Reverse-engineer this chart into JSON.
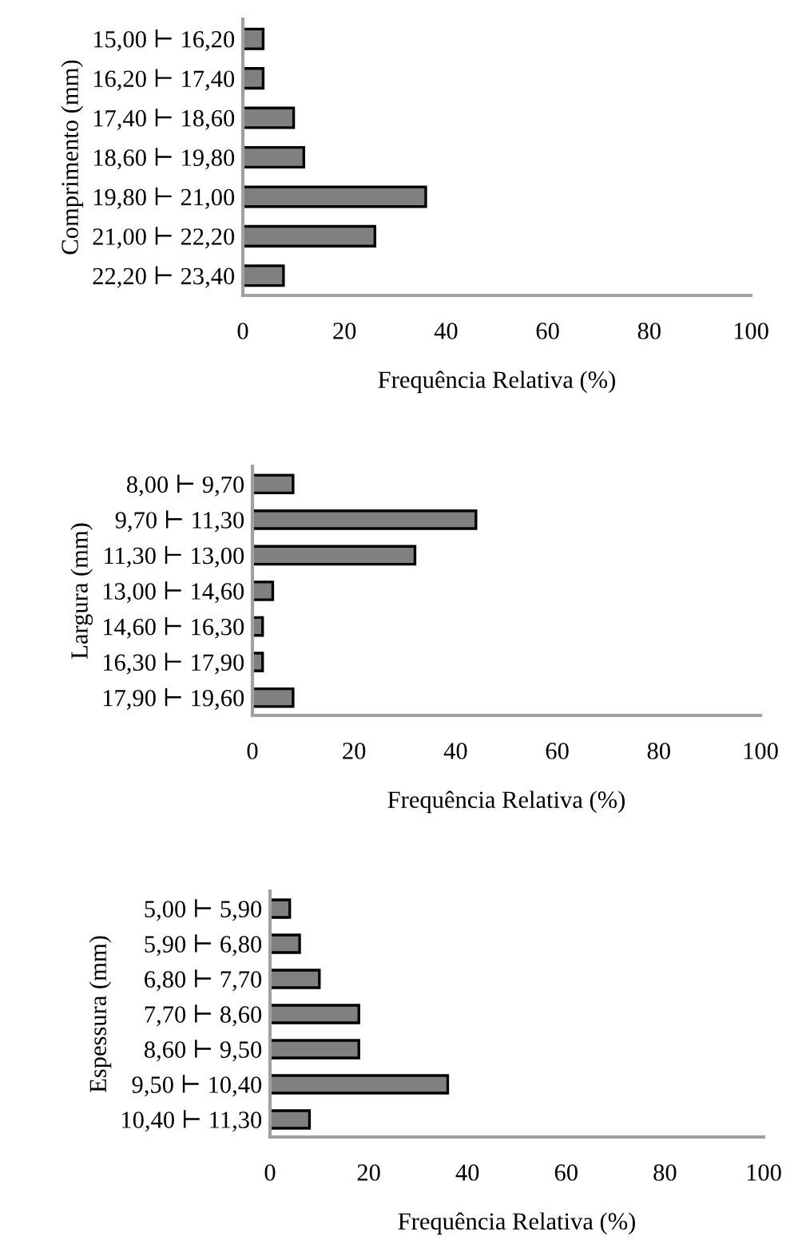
{
  "chart_data": [
    {
      "type": "bar",
      "orientation": "horizontal",
      "categories": [
        "15,00 ⊢ 16,20",
        "16,20 ⊢ 17,40",
        "17,40 ⊢ 18,60",
        "18,60 ⊢ 19,80",
        "19,80 ⊢ 21,00",
        "21,00 ⊢ 22,20",
        "22,20 ⊢ 23,40"
      ],
      "values": [
        4,
        4,
        10,
        12,
        36,
        26,
        8
      ],
      "color": "#808080",
      "xlim": [
        0,
        100
      ],
      "xticks": [
        0,
        20,
        40,
        60,
        80,
        100
      ],
      "xlabel": "Frequência Relativa (%)",
      "ylabel": "Comprimento (mm)",
      "grid": false
    },
    {
      "type": "bar",
      "orientation": "horizontal",
      "categories": [
        "8,00 ⊢ 9,70",
        "9,70 ⊢ 11,30",
        "11,30 ⊢ 13,00",
        "13,00 ⊢ 14,60",
        "14,60 ⊢ 16,30",
        "16,30 ⊢ 17,90",
        "17,90 ⊢ 19,60"
      ],
      "values": [
        8,
        44,
        32,
        4,
        2,
        2,
        8
      ],
      "color": "#808080",
      "xlim": [
        0,
        100
      ],
      "xticks": [
        0,
        20,
        40,
        60,
        80,
        100
      ],
      "xlabel": "Frequência Relativa (%)",
      "ylabel": "Largura (mm)",
      "grid": false
    },
    {
      "type": "bar",
      "orientation": "horizontal",
      "categories": [
        "5,00 ⊢ 5,90",
        "5,90 ⊢ 6,80",
        "6,80 ⊢ 7,70",
        "7,70 ⊢ 8,60",
        "8,60 ⊢ 9,50",
        "9,50 ⊢ 10,40",
        "10,40 ⊢ 11,30"
      ],
      "values": [
        4,
        6,
        10,
        18,
        18,
        36,
        8
      ],
      "color": "#808080",
      "xlim": [
        0,
        100
      ],
      "xticks": [
        0,
        20,
        40,
        60,
        80,
        100
      ],
      "xlabel": "Frequência Relativa (%)",
      "ylabel": "Espessura (mm)",
      "grid": false
    }
  ]
}
